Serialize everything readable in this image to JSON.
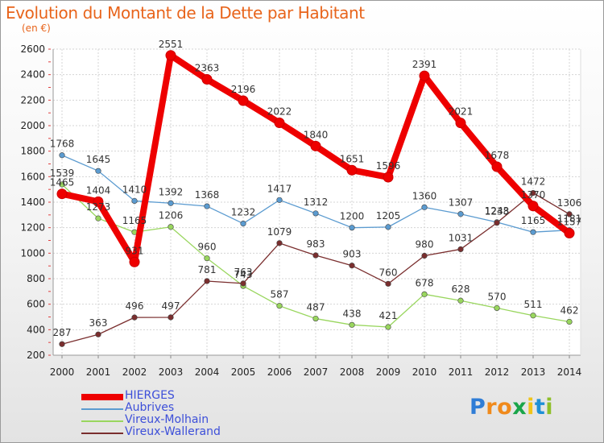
{
  "chart_data": {
    "type": "line",
    "title": "Evolution du Montant de la Dette par Habitant",
    "subtitle": "(en €)",
    "x": [
      "2000",
      "2001",
      "2002",
      "2003",
      "2004",
      "2005",
      "2006",
      "2007",
      "2008",
      "2009",
      "2010",
      "2011",
      "2012",
      "2013",
      "2014"
    ],
    "ylim": [
      200,
      2600
    ],
    "yticks": [
      200,
      400,
      600,
      800,
      1000,
      1200,
      1400,
      1600,
      1800,
      2000,
      2200,
      2400,
      2600
    ],
    "grid": true,
    "legend_position": "bottom-left",
    "series": [
      {
        "name": "HIERGES",
        "color": "#ee0000",
        "values": [
          1465,
          1404,
          931,
          2551,
          2363,
          2196,
          2022,
          1840,
          1651,
          1596,
          2391,
          2021,
          1678,
          1370,
          1157
        ]
      },
      {
        "name": "Aubrives",
        "color": "#5b9bd0",
        "values": [
          1768,
          1645,
          1410,
          1392,
          1368,
          1232,
          1417,
          1312,
          1200,
          1205,
          1360,
          1307,
          1243,
          1165,
          1181
        ]
      },
      {
        "name": "Vireux-Molhain",
        "color": "#99d65e",
        "values": [
          1539,
          1273,
          1165,
          1206,
          960,
          743,
          587,
          487,
          438,
          421,
          678,
          628,
          570,
          511,
          462
        ]
      },
      {
        "name": "Vireux-Wallerand",
        "color": "#7a2e2e",
        "values": [
          287,
          363,
          496,
          497,
          781,
          763,
          1079,
          983,
          903,
          760,
          980,
          1031,
          1238,
          1472,
          1306
        ]
      }
    ]
  },
  "brand": {
    "letters": [
      "P",
      "r",
      "o",
      "x",
      "i",
      "t",
      "i"
    ],
    "colors": [
      "#2f7dd6",
      "#f08a1c",
      "#f08a1c",
      "#1aa54a",
      "#f0c419",
      "#1e90d6",
      "#8fbf2a"
    ]
  }
}
